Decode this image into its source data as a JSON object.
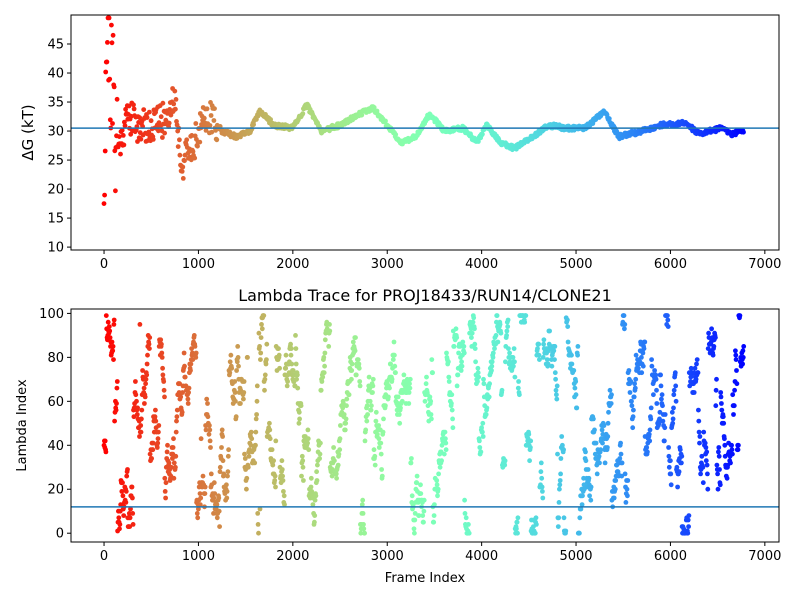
{
  "chart_data": [
    {
      "type": "scatter",
      "title": "",
      "xlabel": "",
      "ylabel": "ΔG (kT)",
      "xlim": [
        -350,
        7150
      ],
      "ylim": [
        9.5,
        50
      ],
      "xticks": [
        0,
        1000,
        2000,
        3000,
        4000,
        5000,
        6000,
        7000
      ],
      "yticks": [
        10,
        15,
        20,
        25,
        30,
        35,
        40,
        45
      ],
      "xtick_labels": [
        "0",
        "1000",
        "2000",
        "3000",
        "4000",
        "5000",
        "6000",
        "7000"
      ],
      "ytick_labels": [
        "10",
        "15",
        "20",
        "25",
        "30",
        "35",
        "40",
        "45"
      ],
      "colormap": "rainbow (red at frame 0 → violet at last frame)",
      "n_frames": 6800,
      "hline": {
        "y": 30.5,
        "color": "#1f77b4"
      },
      "key_points": [
        {
          "x": 0,
          "y": 20
        },
        {
          "x": 20,
          "y": 44
        },
        {
          "x": 40,
          "y": 49
        },
        {
          "x": 80,
          "y": 38
        },
        {
          "x": 150,
          "y": 27
        },
        {
          "x": 250,
          "y": 33
        },
        {
          "x": 350,
          "y": 31
        },
        {
          "x": 500,
          "y": 31
        },
        {
          "x": 650,
          "y": 32
        },
        {
          "x": 750,
          "y": 36
        },
        {
          "x": 820,
          "y": 24
        },
        {
          "x": 950,
          "y": 28
        },
        {
          "x": 1100,
          "y": 33
        },
        {
          "x": 1250,
          "y": 30
        },
        {
          "x": 1400,
          "y": 29
        },
        {
          "x": 1550,
          "y": 30
        },
        {
          "x": 1650,
          "y": 33.5
        },
        {
          "x": 1800,
          "y": 31
        },
        {
          "x": 2000,
          "y": 30.5
        },
        {
          "x": 2150,
          "y": 34.5
        },
        {
          "x": 2300,
          "y": 30
        },
        {
          "x": 2500,
          "y": 31
        },
        {
          "x": 2650,
          "y": 32.5
        },
        {
          "x": 2850,
          "y": 34
        },
        {
          "x": 3000,
          "y": 31
        },
        {
          "x": 3150,
          "y": 28
        },
        {
          "x": 3300,
          "y": 29
        },
        {
          "x": 3450,
          "y": 33
        },
        {
          "x": 3600,
          "y": 30
        },
        {
          "x": 3800,
          "y": 30.5
        },
        {
          "x": 3950,
          "y": 28
        },
        {
          "x": 4050,
          "y": 31
        },
        {
          "x": 4200,
          "y": 28
        },
        {
          "x": 4350,
          "y": 27
        },
        {
          "x": 4500,
          "y": 28.5
        },
        {
          "x": 4700,
          "y": 31
        },
        {
          "x": 4900,
          "y": 30.5
        },
        {
          "x": 5100,
          "y": 30.5
        },
        {
          "x": 5300,
          "y": 33.5
        },
        {
          "x": 5450,
          "y": 29
        },
        {
          "x": 5700,
          "y": 30
        },
        {
          "x": 5900,
          "y": 31
        },
        {
          "x": 6150,
          "y": 31.5
        },
        {
          "x": 6300,
          "y": 29.5
        },
        {
          "x": 6550,
          "y": 30.5
        },
        {
          "x": 6650,
          "y": 29.5
        },
        {
          "x": 6780,
          "y": 30
        }
      ]
    },
    {
      "type": "scatter",
      "title": "Lambda Trace for PROJ18433/RUN14/CLONE21",
      "xlabel": "Frame Index",
      "ylabel": "Lambda Index",
      "xlim": [
        -350,
        7150
      ],
      "ylim": [
        -4,
        102
      ],
      "xticks": [
        0,
        1000,
        2000,
        3000,
        4000,
        5000,
        6000,
        7000
      ],
      "yticks": [
        0,
        20,
        40,
        60,
        80,
        100
      ],
      "xtick_labels": [
        "0",
        "1000",
        "2000",
        "3000",
        "4000",
        "5000",
        "6000",
        "7000"
      ],
      "ytick_labels": [
        "0",
        "20",
        "40",
        "60",
        "80",
        "100"
      ],
      "colormap": "rainbow (red at frame 0 → violet at last frame)",
      "n_frames": 6800,
      "hline": {
        "y": 12,
        "color": "#1f77b4"
      },
      "y_range_of_points": [
        0,
        99
      ]
    }
  ]
}
